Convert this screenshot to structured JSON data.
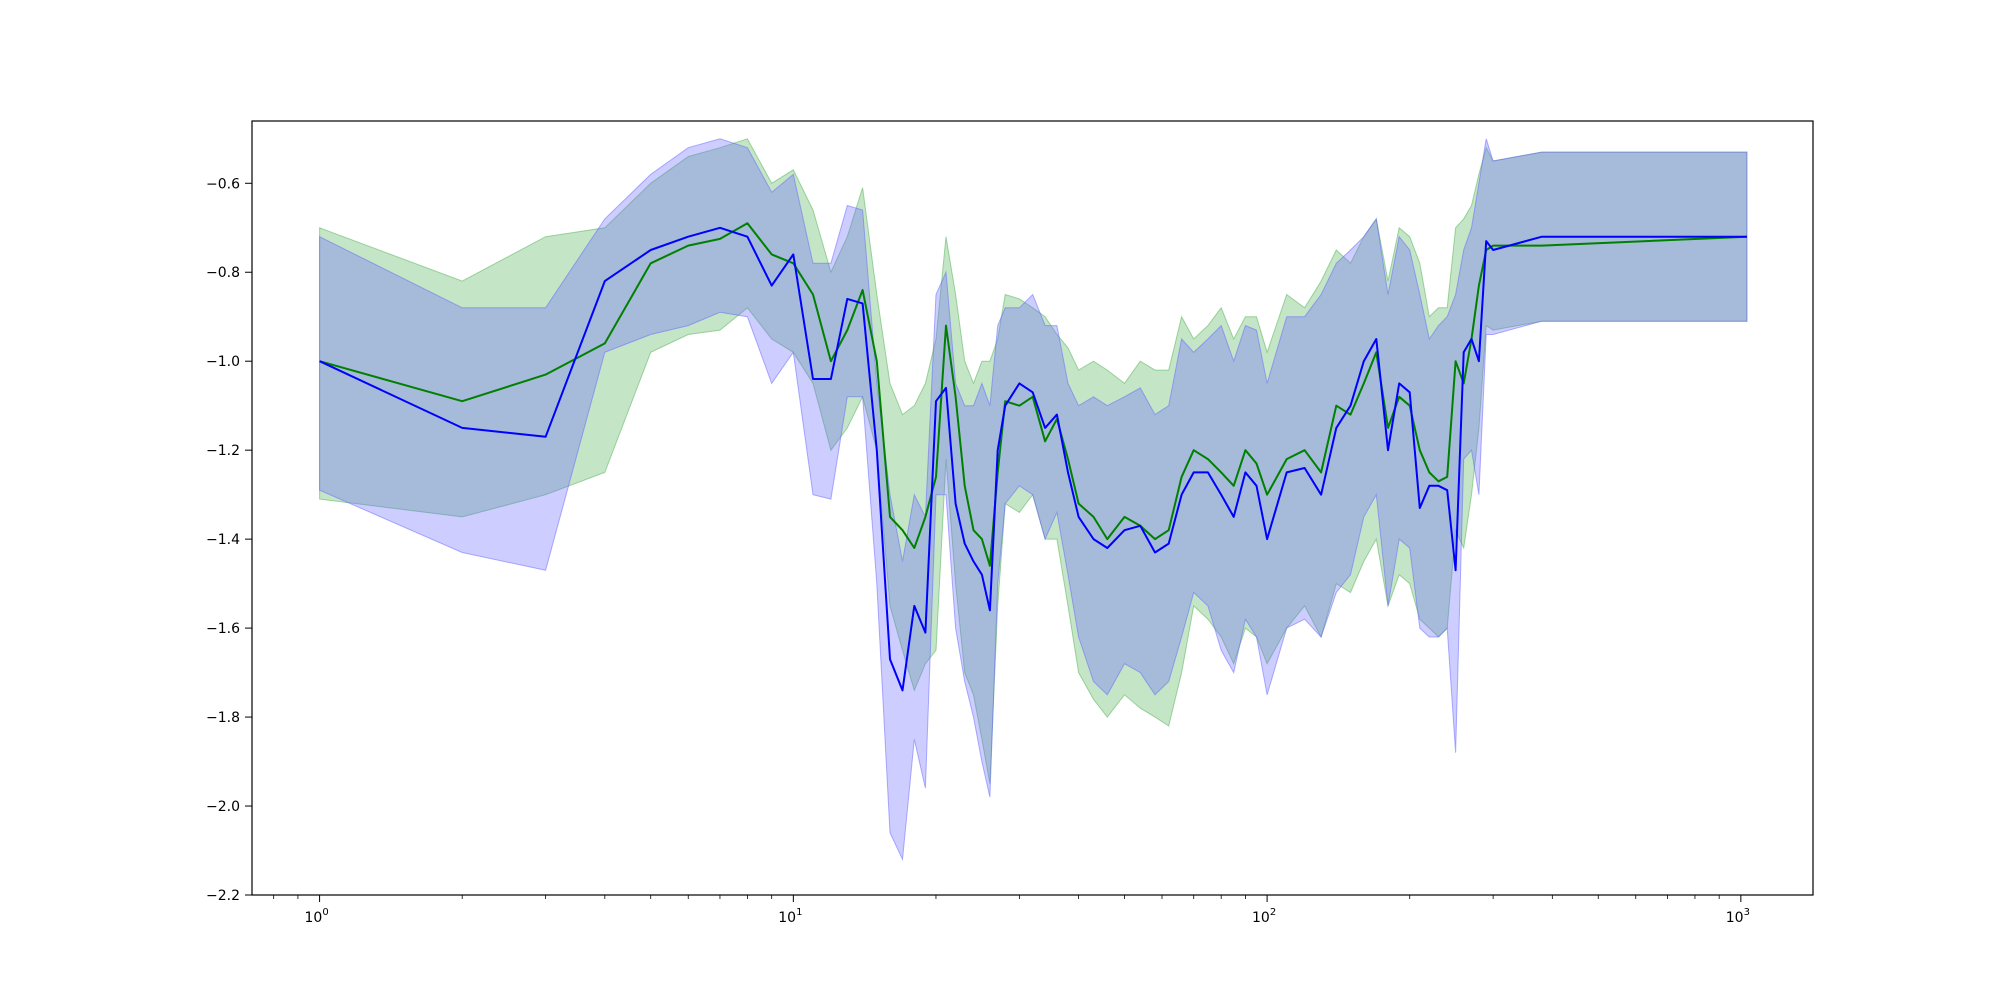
{
  "chart_data": {
    "type": "line",
    "title": "",
    "xlabel": "",
    "ylabel": "",
    "x_scale": "log",
    "xlim": [
      0.72,
      1420
    ],
    "ylim": [
      -2.2,
      -0.46
    ],
    "grid": false,
    "legend": "none",
    "x_ticks": [
      {
        "value": 1,
        "label": "10",
        "exponent": "0"
      },
      {
        "value": 10,
        "label": "10",
        "exponent": "1"
      },
      {
        "value": 100,
        "label": "10",
        "exponent": "2"
      },
      {
        "value": 1000,
        "label": "10",
        "exponent": "3"
      }
    ],
    "y_ticks": [
      {
        "value": -0.6,
        "label": "−0.6"
      },
      {
        "value": -0.8,
        "label": "−0.8"
      },
      {
        "value": -1.0,
        "label": "−1.0"
      },
      {
        "value": -1.2,
        "label": "−1.2"
      },
      {
        "value": -1.4,
        "label": "−1.4"
      },
      {
        "value": -1.6,
        "label": "−1.6"
      },
      {
        "value": -1.8,
        "label": "−1.8"
      },
      {
        "value": -2.0,
        "label": "−2.0"
      },
      {
        "value": -2.2,
        "label": "−2.2"
      }
    ],
    "series": [
      {
        "color": "#008000",
        "band_color": "#4caf50",
        "x": [
          1,
          2,
          3,
          4,
          5,
          6,
          7,
          8,
          9,
          10,
          11,
          12,
          13,
          14,
          15,
          16,
          17,
          18,
          19,
          20,
          21,
          22,
          23,
          24,
          25,
          26,
          27,
          28,
          30,
          32,
          34,
          36,
          38,
          40,
          43,
          46,
          50,
          54,
          58,
          62,
          66,
          70,
          75,
          80,
          85,
          90,
          95,
          100,
          110,
          120,
          130,
          140,
          150,
          160,
          170,
          180,
          190,
          200,
          210,
          220,
          230,
          240,
          250,
          260,
          270,
          280,
          290,
          300,
          380,
          1030
        ],
        "y": [
          -1.0,
          -1.09,
          -1.03,
          -0.96,
          -0.78,
          -0.74,
          -0.725,
          -0.69,
          -0.76,
          -0.78,
          -0.85,
          -1.0,
          -0.93,
          -0.84,
          -1.0,
          -1.35,
          -1.38,
          -1.42,
          -1.35,
          -1.26,
          -0.92,
          -1.08,
          -1.28,
          -1.38,
          -1.4,
          -1.46,
          -1.25,
          -1.09,
          -1.1,
          -1.08,
          -1.18,
          -1.13,
          -1.22,
          -1.32,
          -1.35,
          -1.4,
          -1.35,
          -1.37,
          -1.4,
          -1.38,
          -1.26,
          -1.2,
          -1.22,
          -1.25,
          -1.28,
          -1.2,
          -1.23,
          -1.3,
          -1.22,
          -1.2,
          -1.25,
          -1.1,
          -1.12,
          -1.05,
          -0.98,
          -1.15,
          -1.08,
          -1.1,
          -1.2,
          -1.25,
          -1.27,
          -1.26,
          -1.0,
          -1.05,
          -0.95,
          -0.83,
          -0.75,
          -0.74,
          -0.74,
          -0.72
        ],
        "upper": [
          -0.7,
          -0.82,
          -0.72,
          -0.7,
          -0.6,
          -0.54,
          -0.52,
          -0.5,
          -0.6,
          -0.57,
          -0.66,
          -0.8,
          -0.72,
          -0.61,
          -0.85,
          -1.05,
          -1.12,
          -1.1,
          -1.05,
          -0.95,
          -0.72,
          -0.85,
          -1.0,
          -1.05,
          -1.0,
          -1.0,
          -0.95,
          -0.85,
          -0.86,
          -0.88,
          -0.9,
          -0.94,
          -0.97,
          -1.02,
          -1.0,
          -1.02,
          -1.05,
          -1.0,
          -1.02,
          -1.02,
          -0.9,
          -0.95,
          -0.92,
          -0.88,
          -0.95,
          -0.9,
          -0.9,
          -0.98,
          -0.85,
          -0.88,
          -0.82,
          -0.75,
          -0.78,
          -0.72,
          -0.68,
          -0.82,
          -0.7,
          -0.72,
          -0.78,
          -0.9,
          -0.88,
          -0.88,
          -0.7,
          -0.68,
          -0.65,
          -0.58,
          -0.52,
          -0.55,
          -0.53,
          -0.53
        ],
        "lower": [
          -1.31,
          -1.35,
          -1.3,
          -1.25,
          -0.98,
          -0.94,
          -0.93,
          -0.88,
          -0.95,
          -0.98,
          -1.05,
          -1.2,
          -1.15,
          -1.08,
          -1.2,
          -1.55,
          -1.65,
          -1.74,
          -1.68,
          -1.65,
          -1.22,
          -1.5,
          -1.7,
          -1.75,
          -1.85,
          -1.95,
          -1.55,
          -1.32,
          -1.34,
          -1.3,
          -1.4,
          -1.4,
          -1.55,
          -1.7,
          -1.76,
          -1.8,
          -1.75,
          -1.78,
          -1.8,
          -1.82,
          -1.7,
          -1.55,
          -1.58,
          -1.62,
          -1.68,
          -1.6,
          -1.62,
          -1.68,
          -1.6,
          -1.55,
          -1.62,
          -1.5,
          -1.52,
          -1.45,
          -1.4,
          -1.55,
          -1.48,
          -1.5,
          -1.58,
          -1.6,
          -1.62,
          -1.6,
          -1.38,
          -1.42,
          -1.3,
          -1.15,
          -0.92,
          -0.93,
          -0.91,
          -0.91
        ]
      },
      {
        "color": "#0000ff",
        "band_color": "#6464ff",
        "x": [
          1,
          2,
          3,
          4,
          5,
          6,
          7,
          8,
          9,
          10,
          11,
          12,
          13,
          14,
          15,
          16,
          17,
          18,
          19,
          20,
          21,
          22,
          23,
          24,
          25,
          26,
          27,
          28,
          30,
          32,
          34,
          36,
          38,
          40,
          43,
          46,
          50,
          54,
          58,
          62,
          66,
          70,
          75,
          80,
          85,
          90,
          95,
          100,
          110,
          120,
          130,
          140,
          150,
          160,
          170,
          180,
          190,
          200,
          210,
          220,
          230,
          240,
          250,
          260,
          270,
          280,
          290,
          300,
          380,
          1030
        ],
        "y": [
          -1.0,
          -1.15,
          -1.17,
          -0.82,
          -0.75,
          -0.72,
          -0.7,
          -0.72,
          -0.83,
          -0.76,
          -1.04,
          -1.04,
          -0.86,
          -0.87,
          -1.2,
          -1.67,
          -1.74,
          -1.55,
          -1.61,
          -1.09,
          -1.06,
          -1.32,
          -1.41,
          -1.45,
          -1.48,
          -1.56,
          -1.2,
          -1.1,
          -1.05,
          -1.07,
          -1.15,
          -1.12,
          -1.25,
          -1.35,
          -1.4,
          -1.42,
          -1.38,
          -1.37,
          -1.43,
          -1.41,
          -1.3,
          -1.25,
          -1.25,
          -1.3,
          -1.35,
          -1.25,
          -1.28,
          -1.4,
          -1.25,
          -1.24,
          -1.3,
          -1.15,
          -1.1,
          -1.0,
          -0.95,
          -1.2,
          -1.05,
          -1.07,
          -1.33,
          -1.28,
          -1.28,
          -1.29,
          -1.47,
          -0.98,
          -0.95,
          -1.0,
          -0.73,
          -0.75,
          -0.72,
          -0.72
        ],
        "upper": [
          -0.72,
          -0.88,
          -0.88,
          -0.68,
          -0.58,
          -0.52,
          -0.5,
          -0.52,
          -0.62,
          -0.58,
          -0.78,
          -0.78,
          -0.65,
          -0.66,
          -1.05,
          -1.3,
          -1.45,
          -1.3,
          -1.35,
          -0.85,
          -0.8,
          -1.05,
          -1.1,
          -1.1,
          -1.05,
          -1.1,
          -0.92,
          -0.88,
          -0.88,
          -0.85,
          -0.92,
          -0.92,
          -1.05,
          -1.1,
          -1.08,
          -1.1,
          -1.08,
          -1.06,
          -1.12,
          -1.1,
          -0.95,
          -0.98,
          -0.95,
          -0.92,
          -1.0,
          -0.92,
          -0.93,
          -1.05,
          -0.9,
          -0.9,
          -0.85,
          -0.78,
          -0.75,
          -0.72,
          -0.68,
          -0.85,
          -0.72,
          -0.75,
          -0.85,
          -0.95,
          -0.92,
          -0.9,
          -0.85,
          -0.75,
          -0.7,
          -0.6,
          -0.5,
          -0.55,
          -0.53,
          -0.53
        ],
        "lower": [
          -1.29,
          -1.43,
          -1.47,
          -0.98,
          -0.94,
          -0.92,
          -0.89,
          -0.9,
          -1.05,
          -0.98,
          -1.3,
          -1.31,
          -1.08,
          -1.08,
          -1.5,
          -2.06,
          -2.12,
          -1.85,
          -1.96,
          -1.3,
          -1.3,
          -1.6,
          -1.72,
          -1.8,
          -1.9,
          -1.98,
          -1.5,
          -1.32,
          -1.28,
          -1.3,
          -1.4,
          -1.34,
          -1.48,
          -1.62,
          -1.72,
          -1.75,
          -1.68,
          -1.7,
          -1.75,
          -1.72,
          -1.62,
          -1.52,
          -1.55,
          -1.65,
          -1.7,
          -1.58,
          -1.62,
          -1.75,
          -1.6,
          -1.58,
          -1.62,
          -1.52,
          -1.48,
          -1.35,
          -1.3,
          -1.55,
          -1.4,
          -1.42,
          -1.6,
          -1.62,
          -1.62,
          -1.6,
          -1.88,
          -1.22,
          -1.2,
          -1.3,
          -0.94,
          -0.94,
          -0.91,
          -0.91
        ]
      }
    ]
  }
}
